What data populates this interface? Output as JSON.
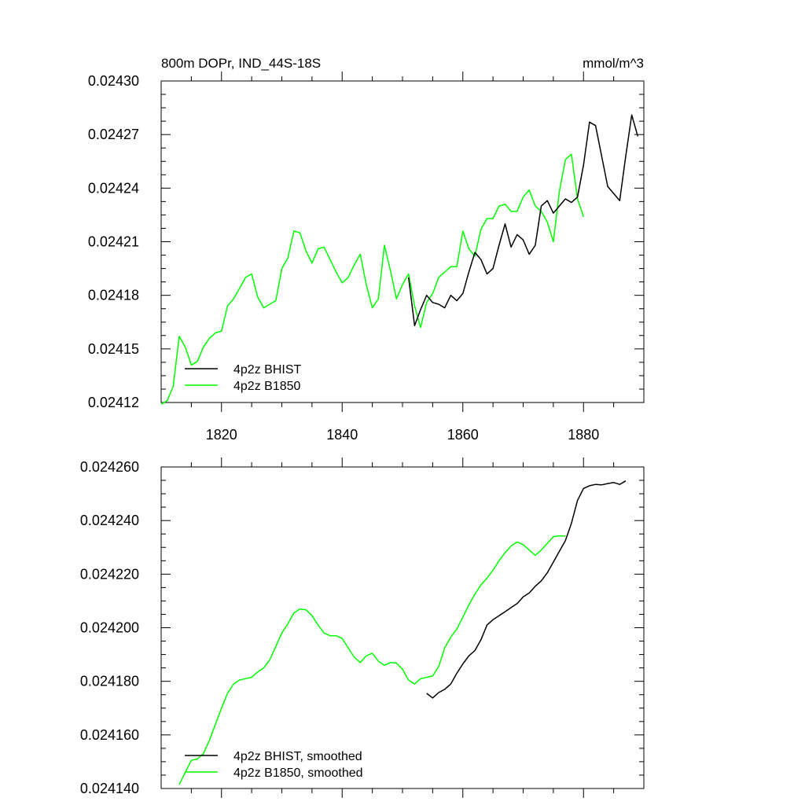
{
  "chart_data": [
    {
      "type": "line",
      "title": "800m DOPr, IND_44S-18S",
      "units": "mmol/m^3",
      "xlim": [
        1810,
        1890
      ],
      "ylim": [
        0.02412,
        0.0243
      ],
      "xticks": [
        1820,
        1840,
        1860,
        1880
      ],
      "xtick_labels": [
        "1820",
        "1840",
        "1860",
        "1880"
      ],
      "yticks": [
        0.02412,
        0.02415,
        0.02418,
        0.02421,
        0.02424,
        0.02427,
        0.0243
      ],
      "ytick_labels": [
        "0.02412",
        "0.02415",
        "0.02418",
        "0.02421",
        "0.02424",
        "0.02427",
        "0.02430"
      ],
      "legend_position": "bottom-left",
      "series": [
        {
          "name": "4p2z BHIST",
          "color": "#000000",
          "x": [
            1851,
            1852,
            1853,
            1854,
            1855,
            1856,
            1857,
            1858,
            1859,
            1860,
            1861,
            1862,
            1863,
            1864,
            1865,
            1866,
            1867,
            1868,
            1869,
            1870,
            1871,
            1872,
            1873,
            1874,
            1875,
            1876,
            1877,
            1878,
            1879,
            1880,
            1881,
            1882,
            1883,
            1884,
            1885,
            1886,
            1887,
            1888,
            1889
          ],
          "y": [
            0.02419,
            0.024163,
            0.024172,
            0.02418,
            0.024176,
            0.024175,
            0.024173,
            0.02418,
            0.024177,
            0.024181,
            0.024193,
            0.024204,
            0.0242,
            0.024192,
            0.024195,
            0.024208,
            0.02422,
            0.024207,
            0.024214,
            0.024211,
            0.024203,
            0.024208,
            0.02423,
            0.024233,
            0.024226,
            0.02423,
            0.024234,
            0.024232,
            0.024235,
            0.024253,
            0.024277,
            0.024275,
            0.024258,
            0.024241,
            0.024237,
            0.024233,
            0.024258,
            0.024281,
            0.024269
          ]
        },
        {
          "name": "4p2z B1850",
          "color": "#00ff00",
          "x": [
            1810,
            1811,
            1812,
            1813,
            1814,
            1815,
            1816,
            1817,
            1818,
            1819,
            1820,
            1821,
            1822,
            1823,
            1824,
            1825,
            1826,
            1827,
            1828,
            1829,
            1830,
            1831,
            1832,
            1833,
            1834,
            1835,
            1836,
            1837,
            1838,
            1839,
            1840,
            1841,
            1842,
            1843,
            1844,
            1845,
            1846,
            1847,
            1848,
            1849,
            1850,
            1851,
            1852,
            1853,
            1854,
            1855,
            1856,
            1857,
            1858,
            1859,
            1860,
            1861,
            1862,
            1863,
            1864,
            1865,
            1866,
            1867,
            1868,
            1869,
            1870,
            1871,
            1872,
            1873,
            1874,
            1875,
            1876,
            1877,
            1878,
            1879,
            1880
          ],
          "y": [
            0.024119,
            0.024121,
            0.024129,
            0.024157,
            0.024151,
            0.024141,
            0.024143,
            0.024151,
            0.024156,
            0.024159,
            0.02416,
            0.024174,
            0.024178,
            0.024184,
            0.02419,
            0.024192,
            0.024179,
            0.024173,
            0.024175,
            0.024177,
            0.024195,
            0.024201,
            0.024216,
            0.024215,
            0.024205,
            0.024198,
            0.024206,
            0.024207,
            0.0242,
            0.024193,
            0.024187,
            0.02419,
            0.024197,
            0.024203,
            0.024186,
            0.024173,
            0.024178,
            0.024208,
            0.024194,
            0.024178,
            0.024186,
            0.024192,
            0.024174,
            0.024162,
            0.024176,
            0.024181,
            0.02419,
            0.024193,
            0.024196,
            0.024196,
            0.024216,
            0.024206,
            0.024202,
            0.024217,
            0.024223,
            0.024223,
            0.02423,
            0.024231,
            0.024227,
            0.024227,
            0.024235,
            0.024239,
            0.02423,
            0.024227,
            0.024221,
            0.02421,
            0.024238,
            0.024256,
            0.024259,
            0.024234,
            0.024224
          ]
        }
      ]
    },
    {
      "type": "line",
      "xlim": [
        1810,
        1890
      ],
      "ylim": [
        0.02414,
        0.02426
      ],
      "xticks": [
        1820,
        1840,
        1860,
        1880
      ],
      "yticks": [
        0.02414,
        0.02416,
        0.02418,
        0.0242,
        0.02422,
        0.02424,
        0.02426
      ],
      "ytick_labels": [
        "0.024140",
        "0.024160",
        "0.024180",
        "0.024200",
        "0.024220",
        "0.024240",
        "0.024260"
      ],
      "legend_position": "bottom-left",
      "series": [
        {
          "name": "4p2z BHIST, smoothed",
          "color": "#000000",
          "x": [
            1854,
            1855,
            1856,
            1857,
            1858,
            1859,
            1860,
            1861,
            1862,
            1863,
            1864,
            1865,
            1866,
            1867,
            1868,
            1869,
            1870,
            1871,
            1872,
            1873,
            1874,
            1875,
            1876,
            1877,
            1878,
            1879,
            1880,
            1881,
            1882,
            1883,
            1884,
            1885,
            1886,
            1887
          ],
          "y": [
            0.0241755,
            0.0241738,
            0.0241758,
            0.024177,
            0.024179,
            0.024183,
            0.0241865,
            0.0241895,
            0.0241915,
            0.0241955,
            0.024201,
            0.024203,
            0.0242045,
            0.024206,
            0.0242075,
            0.024209,
            0.0242115,
            0.024213,
            0.0242155,
            0.0242175,
            0.0242205,
            0.0242245,
            0.0242285,
            0.0242325,
            0.024239,
            0.0242475,
            0.024252,
            0.024253,
            0.0242535,
            0.0242533,
            0.0242538,
            0.0242542,
            0.0242535,
            0.0242548
          ]
        },
        {
          "name": "4p2z B1850, smoothed",
          "color": "#00ff00",
          "x": [
            1813,
            1814,
            1815,
            1816,
            1817,
            1818,
            1819,
            1820,
            1821,
            1822,
            1823,
            1824,
            1825,
            1826,
            1827,
            1828,
            1829,
            1830,
            1831,
            1832,
            1833,
            1834,
            1835,
            1836,
            1837,
            1838,
            1839,
            1840,
            1841,
            1842,
            1843,
            1844,
            1845,
            1846,
            1847,
            1848,
            1849,
            1850,
            1851,
            1852,
            1853,
            1854,
            1855,
            1856,
            1857,
            1858,
            1859,
            1860,
            1861,
            1862,
            1863,
            1864,
            1865,
            1866,
            1867,
            1868,
            1869,
            1870,
            1871,
            1872,
            1873,
            1874,
            1875,
            1876,
            1877
          ],
          "y": [
            0.0241415,
            0.024146,
            0.0241505,
            0.024151,
            0.024153,
            0.024158,
            0.024164,
            0.02417,
            0.0241755,
            0.024179,
            0.0241805,
            0.024181,
            0.0241815,
            0.0241835,
            0.024185,
            0.024188,
            0.024193,
            0.024198,
            0.0242015,
            0.0242055,
            0.024207,
            0.0242067,
            0.0242045,
            0.024201,
            0.024198,
            0.024197,
            0.024197,
            0.024196,
            0.0241925,
            0.024189,
            0.024187,
            0.0241895,
            0.0241905,
            0.0241875,
            0.024186,
            0.024187,
            0.0241868,
            0.0241845,
            0.0241805,
            0.024179,
            0.024181,
            0.0241815,
            0.024182,
            0.0241855,
            0.0241925,
            0.0241965,
            0.0241995,
            0.024204,
            0.0242085,
            0.0242125,
            0.024216,
            0.0242185,
            0.0242215,
            0.024225,
            0.024228,
            0.0242305,
            0.024232,
            0.024231,
            0.024229,
            0.024227,
            0.024229,
            0.0242315,
            0.024234,
            0.0242343,
            0.0242342
          ]
        }
      ]
    }
  ]
}
